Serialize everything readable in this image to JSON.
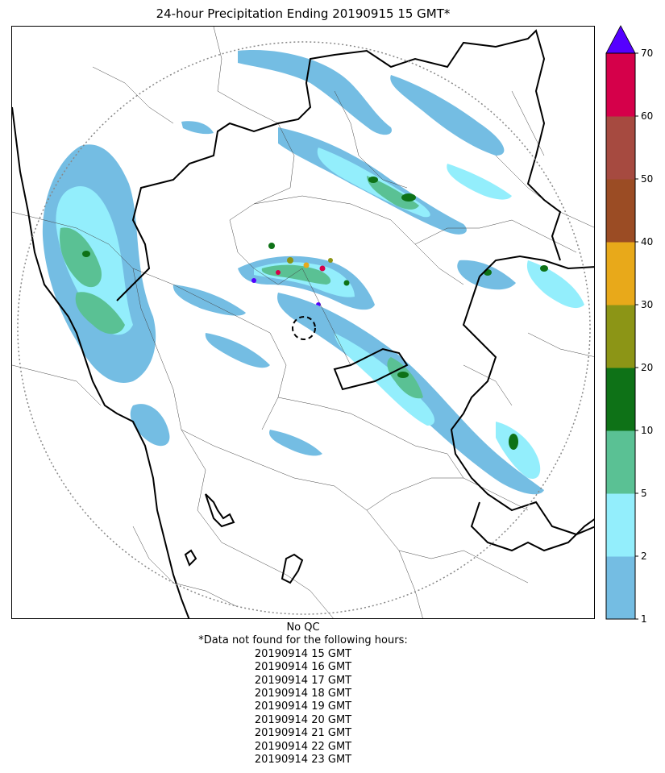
{
  "title": "24-hour Precipitation Ending 20190915 15 GMT*",
  "colorbar": {
    "ticks": [
      "1",
      "2",
      "5",
      "10",
      "20",
      "30",
      "40",
      "50",
      "60",
      "70"
    ],
    "colors": [
      "#74bde3",
      "#93eefc",
      "#5ac194",
      "#0e7217",
      "#8c9516",
      "#e8a91a",
      "#9b4c24",
      "#a64a40",
      "#d5004a"
    ],
    "overflow_color": "#5500ff",
    "extend": "max"
  },
  "map": {
    "features": [
      "country-borders",
      "province-borders",
      "radar-range-ring",
      "radar-site-marker",
      "precipitation-field"
    ],
    "colors": {
      "country_border": "#000000",
      "province_border": "#444444",
      "range_ring": "#888888"
    }
  },
  "footer": {
    "qc": "No QC",
    "note": "*Data not found for the following hours:",
    "missing_hours": [
      "20190914 15 GMT",
      "20190914 16 GMT",
      "20190914 17 GMT",
      "20190914 18 GMT",
      "20190914 19 GMT",
      "20190914 20 GMT",
      "20190914 21 GMT",
      "20190914 22 GMT",
      "20190914 23 GMT"
    ]
  }
}
